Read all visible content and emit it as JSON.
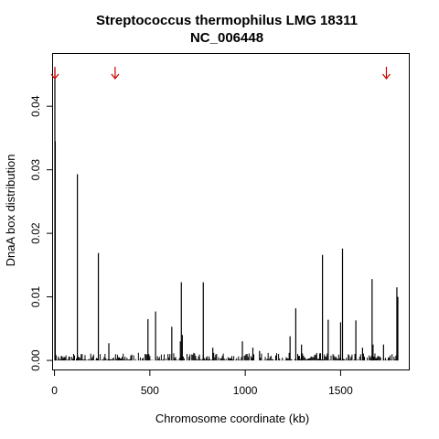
{
  "chart_data": {
    "type": "bar",
    "title": [
      "Streptococcus thermophilus LMG 18311",
      "NC_006448"
    ],
    "xlabel": "Chromosome coordinate (kb)",
    "ylabel": "DnaA box distribution",
    "xlim": [
      -10,
      1860
    ],
    "ylim": [
      -0.0015,
      0.0483
    ],
    "x_ticks": [
      0,
      500,
      1000,
      1500
    ],
    "y_ticks": [
      0.0,
      0.01,
      0.02,
      0.03,
      0.04
    ],
    "y_tick_labels": [
      "0.00",
      "0.01",
      "0.02",
      "0.03",
      "0.04"
    ],
    "grid": false,
    "legend": "none",
    "colors": {
      "bars": "#000000",
      "arrows": "#cc0000"
    },
    "arrows_x": [
      2,
      318,
      1740
    ],
    "spikes": {
      "x": [
        2,
        4,
        8,
        120,
        230,
        285,
        490,
        530,
        615,
        660,
        665,
        670,
        780,
        830,
        985,
        1040,
        1075,
        1235,
        1265,
        1295,
        1405,
        1435,
        1500,
        1510,
        1580,
        1615,
        1665,
        1670,
        1725,
        1795,
        1800
      ],
      "values": [
        0.0459,
        0.0345,
        0.0008,
        0.0293,
        0.0169,
        0.0027,
        0.0065,
        0.0077,
        0.0053,
        0.003,
        0.0123,
        0.004,
        0.0123,
        0.002,
        0.003,
        0.002,
        0.0015,
        0.0038,
        0.0082,
        0.0025,
        0.0166,
        0.0064,
        0.006,
        0.0176,
        0.0063,
        0.002,
        0.0128,
        0.0025,
        0.0025,
        0.0115,
        0.01
      ]
    },
    "baseline_noise": {
      "x_start": 0,
      "x_end": 1800,
      "step": 5,
      "max_value": 0.0012
    }
  }
}
